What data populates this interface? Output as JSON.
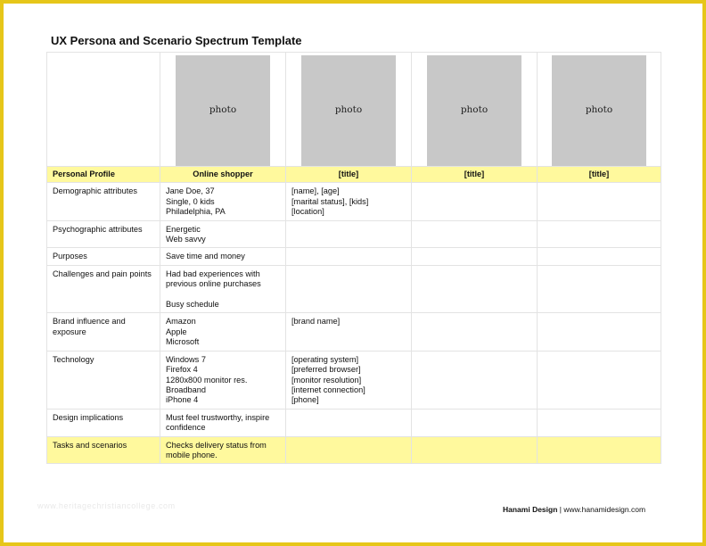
{
  "document": {
    "title": "UX Persona and Scenario Spectrum Template",
    "watermark": "www.heritagechristiancollege.com",
    "footer": {
      "brand": "Hanami Design",
      "separator": "|",
      "url": "www.hanamidesign.com"
    }
  },
  "table": {
    "photo_label": "photo",
    "header": [
      "Personal Profile",
      "Online shopper",
      "[title]",
      "[title]",
      "[title]"
    ],
    "rows": [
      {
        "label": "Demographic attributes",
        "values": [
          "Jane Doe, 37\nSingle, 0 kids\nPhiladelphia, PA",
          "[name], [age]\n[marital status], [kids]\n[location]",
          "",
          ""
        ]
      },
      {
        "label": "Psychographic attributes",
        "values": [
          "Energetic\nWeb savvy",
          "",
          "",
          ""
        ]
      },
      {
        "label": "Purposes",
        "values": [
          "Save time and money",
          "",
          "",
          ""
        ]
      },
      {
        "label": "Challenges and pain points",
        "values": [
          "Had bad experiences with previous online purchases\n\nBusy schedule",
          "",
          "",
          ""
        ]
      },
      {
        "label": "Brand influence and exposure",
        "values": [
          "Amazon\nApple\nMicrosoft",
          "[brand name]",
          "",
          ""
        ]
      },
      {
        "label": "Technology",
        "values": [
          "Windows 7\nFirefox 4\n1280x800 monitor res.\nBroadband\niPhone 4",
          "[operating system]\n[preferred browser]\n[monitor resolution]\n[internet connection]\n[phone]",
          "",
          ""
        ]
      },
      {
        "label": "Design implications",
        "values": [
          "Must feel trustworthy, inspire confidence",
          "",
          "",
          ""
        ]
      },
      {
        "label": "Tasks and scenarios",
        "values": [
          "Checks delivery status from mobile phone.",
          "",
          "",
          ""
        ],
        "highlight": true
      }
    ]
  },
  "colors": {
    "page_border": "#e6c619",
    "highlight": "#fff99d",
    "photo_placeholder": "#c8c8c8"
  }
}
